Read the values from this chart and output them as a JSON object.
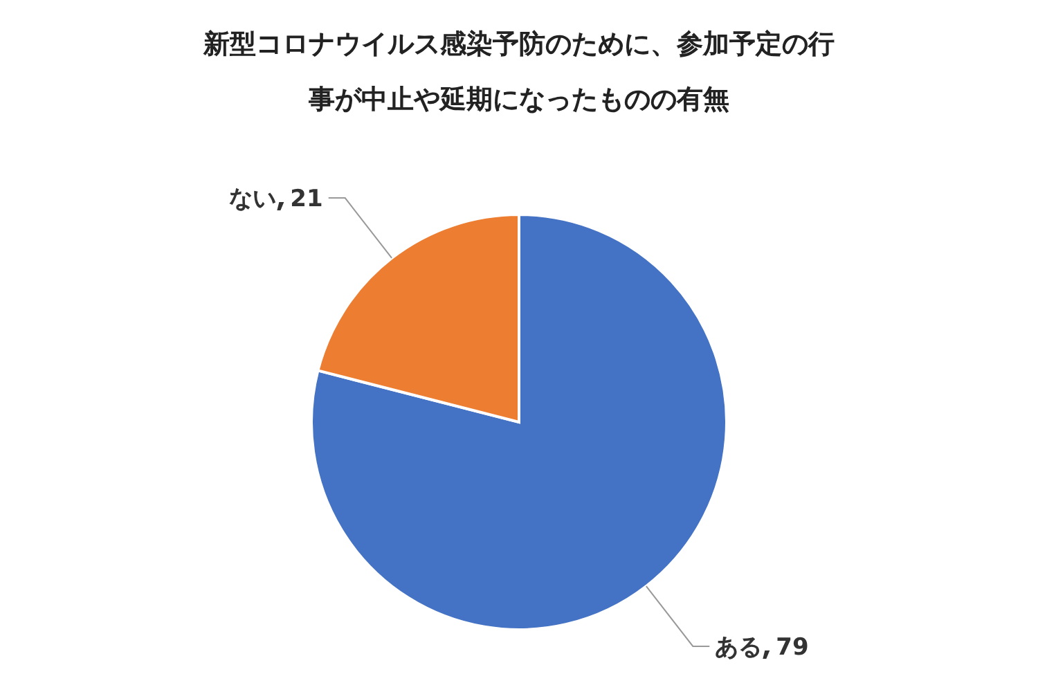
{
  "chart_data": {
    "type": "pie",
    "title": "新型コロナウイルス感染予防のために、参加予定の行事が中止や延期になったものの有無",
    "categories": [
      "ある",
      "ない"
    ],
    "values": [
      79,
      21
    ],
    "colors": [
      "#4472c4",
      "#ed7d31"
    ],
    "data_labels": true
  }
}
